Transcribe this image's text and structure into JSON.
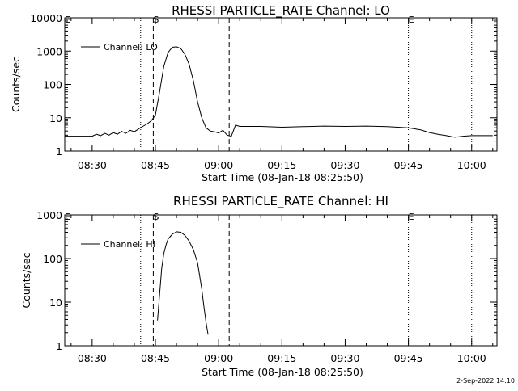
{
  "footer": "2-Sep-2022 14:10",
  "chart_data": [
    {
      "type": "line",
      "title": "RHESSI PARTICLE_RATE Channel: LO",
      "xlabel": "Start Time (08-Jan-18 08:25:50)",
      "ylabel": "Counts/sec",
      "yscale": "log",
      "ylim": [
        1,
        10000
      ],
      "xlim": [
        "08:23:30",
        "10:06:00"
      ],
      "xticks": [
        "08:30",
        "08:45",
        "09:00",
        "09:15",
        "09:30",
        "09:45",
        "10:00"
      ],
      "yticks": [
        "1",
        "10",
        "100",
        "1000",
        "10000"
      ],
      "legend": {
        "label": "Channel: LO",
        "position": "top-left"
      },
      "markers": [
        {
          "label": "E",
          "x": "08:23:30",
          "style": "dotted"
        },
        {
          "label": "",
          "x": "08:41:30",
          "style": "dotted"
        },
        {
          "label": "S",
          "x": "08:44:30",
          "style": "dashed"
        },
        {
          "label": "",
          "x": "09:02:30",
          "style": "dashed"
        },
        {
          "label": "E",
          "x": "09:45:00",
          "style": "dotted"
        },
        {
          "label": "",
          "x": "10:00:00",
          "style": "dotted"
        }
      ],
      "series": [
        {
          "name": "Channel: LO",
          "x": [
            "08:23:30",
            "08:30:00",
            "08:31:00",
            "08:32:00",
            "08:33:00",
            "08:34:00",
            "08:35:00",
            "08:36:00",
            "08:37:00",
            "08:38:00",
            "08:39:00",
            "08:40:00",
            "08:41:00",
            "08:42:00",
            "08:43:00",
            "08:44:00",
            "08:45:00",
            "08:46:00",
            "08:47:00",
            "08:48:00",
            "08:49:00",
            "08:50:00",
            "08:51:00",
            "08:52:00",
            "08:53:00",
            "08:54:00",
            "08:55:00",
            "08:56:00",
            "08:57:00",
            "08:58:00",
            "08:59:00",
            "09:00:00",
            "09:01:00",
            "09:02:00",
            "09:03:00",
            "09:04:00",
            "09:05:00",
            "09:10:00",
            "09:15:00",
            "09:20:00",
            "09:25:00",
            "09:30:00",
            "09:35:00",
            "09:40:00",
            "09:45:00",
            "09:48:00",
            "09:50:00",
            "09:52:00",
            "09:54:00",
            "09:56:00",
            "09:58:00",
            "10:00:00",
            "10:05:00"
          ],
          "values": [
            2.8,
            2.8,
            3.2,
            2.9,
            3.4,
            3.0,
            3.6,
            3.2,
            3.9,
            3.4,
            4.2,
            3.8,
            4.6,
            5.5,
            6.5,
            8,
            12,
            60,
            350,
            900,
            1300,
            1350,
            1200,
            800,
            400,
            130,
            30,
            10,
            5,
            4,
            3.8,
            3.5,
            4.2,
            3,
            2.8,
            6,
            5.5,
            5.5,
            5.2,
            5.4,
            5.6,
            5.5,
            5.6,
            5.4,
            5.0,
            4.3,
            3.6,
            3.2,
            2.9,
            2.6,
            2.8,
            2.9,
            2.9
          ]
        }
      ]
    },
    {
      "type": "line",
      "title": "RHESSI PARTICLE_RATE Channel: HI",
      "xlabel": "Start Time (08-Jan-18 08:25:50)",
      "ylabel": "Counts/sec",
      "yscale": "log",
      "ylim": [
        1,
        1000
      ],
      "xlim": [
        "08:23:30",
        "10:06:00"
      ],
      "xticks": [
        "08:30",
        "08:45",
        "09:00",
        "09:15",
        "09:30",
        "09:45",
        "10:00"
      ],
      "yticks": [
        "1",
        "10",
        "100",
        "1000"
      ],
      "legend": {
        "label": "Channel: HI",
        "position": "top-left"
      },
      "markers": [
        {
          "label": "E",
          "x": "08:23:30",
          "style": "dotted"
        },
        {
          "label": "",
          "x": "08:41:30",
          "style": "dotted"
        },
        {
          "label": "S",
          "x": "08:44:30",
          "style": "dashed"
        },
        {
          "label": "",
          "x": "09:02:30",
          "style": "dashed"
        },
        {
          "label": "E",
          "x": "09:45:00",
          "style": "dotted"
        },
        {
          "label": "",
          "x": "10:00:00",
          "style": "dotted"
        }
      ],
      "series": [
        {
          "name": "Channel: HI",
          "x": [
            "08:45:30",
            "08:46:00",
            "08:46:30",
            "08:47:00",
            "08:47:30",
            "08:48:00",
            "08:49:00",
            "08:50:00",
            "08:51:00",
            "08:52:00",
            "08:53:00",
            "08:54:00",
            "08:55:00",
            "08:55:30",
            "08:56:00",
            "08:56:30",
            "08:57:00",
            "08:57:30"
          ],
          "values": [
            3.8,
            15,
            60,
            130,
            200,
            280,
            360,
            410,
            400,
            340,
            250,
            160,
            80,
            40,
            20,
            8,
            3.5,
            1.8
          ]
        }
      ]
    }
  ]
}
